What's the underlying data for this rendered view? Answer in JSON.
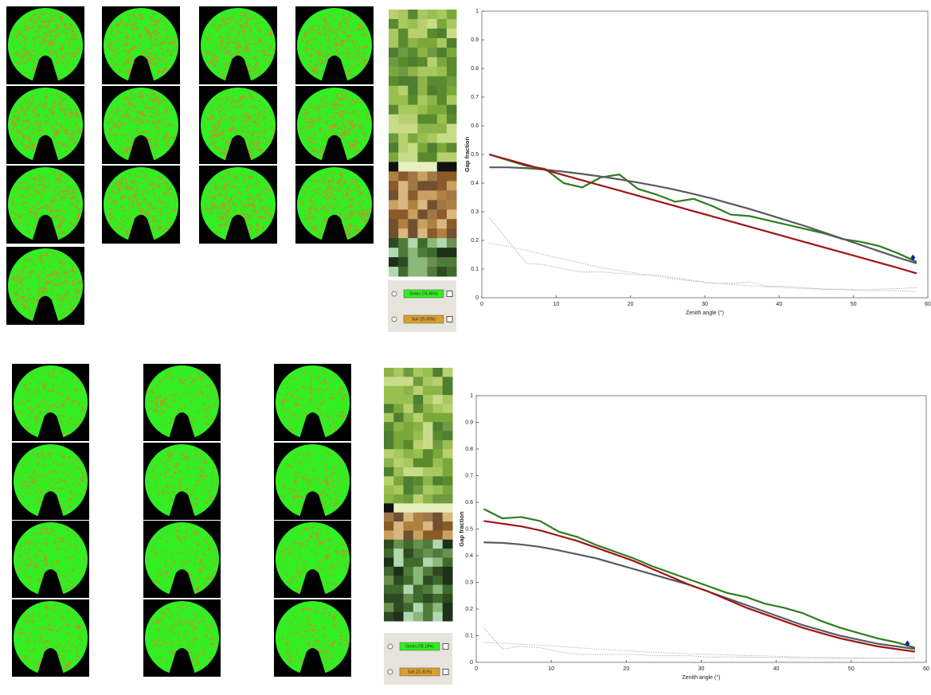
{
  "chart_data": [
    {
      "type": "line",
      "xlabel": "Zenith angle (°)",
      "ylabel": "Gap fraction",
      "xlim": [
        0,
        60
      ],
      "xticks": [
        0,
        10,
        20,
        30,
        40,
        50,
        60
      ],
      "ylim": [
        0,
        1
      ],
      "yticks": [
        0,
        0.1,
        0.2,
        0.3,
        0.4,
        0.5,
        0.6,
        0.7,
        0.8,
        0.9,
        1
      ],
      "x": [
        1,
        3.5,
        6,
        8.5,
        11,
        13.5,
        16,
        18.5,
        21,
        23.5,
        26,
        28.5,
        31,
        33.5,
        36,
        38.5,
        41,
        43.5,
        46,
        48.5,
        51,
        53.5,
        56,
        58.5
      ],
      "series": [
        {
          "color": "#c8a8a8",
          "style": "dotted",
          "values": [
            0.28,
            0.2,
            0.12,
            0.115,
            0.1,
            0.09,
            0.09,
            0.085,
            0.08,
            0.08,
            0.07,
            0.06,
            0.05,
            0.05,
            0.055,
            0.04,
            0.04,
            0.035,
            0.03,
            0.03,
            0.025,
            0.025,
            0.025,
            0.02
          ]
        },
        {
          "color": "#b8b8b8",
          "style": "dotted",
          "values": [
            0.19,
            0.18,
            0.165,
            0.15,
            0.135,
            0.12,
            0.105,
            0.095,
            0.085,
            0.075,
            0.065,
            0.058,
            0.052,
            0.047,
            0.042,
            0.038,
            0.035,
            0.032,
            0.03,
            0.028,
            0.028,
            0.03,
            0.032,
            0.035
          ]
        },
        {
          "color": "#2e7d1e",
          "style": "solid",
          "values": [
            0.5,
            0.48,
            0.46,
            0.45,
            0.4,
            0.385,
            0.42,
            0.43,
            0.38,
            0.36,
            0.335,
            0.345,
            0.32,
            0.29,
            0.285,
            0.27,
            0.255,
            0.24,
            0.225,
            0.205,
            0.195,
            0.18,
            0.155,
            0.125
          ]
        },
        {
          "color": "#555a60",
          "style": "solid",
          "values": [
            0.455,
            0.455,
            0.452,
            0.447,
            0.44,
            0.432,
            0.423,
            0.413,
            0.402,
            0.39,
            0.377,
            0.362,
            0.346,
            0.328,
            0.31,
            0.29,
            0.27,
            0.25,
            0.228,
            0.206,
            0.184,
            0.162,
            0.14,
            0.12
          ]
        },
        {
          "color": "#a01414",
          "style": "solid",
          "values": [
            0.5,
            0.482,
            0.464,
            0.446,
            0.428,
            0.41,
            0.392,
            0.374,
            0.356,
            0.338,
            0.32,
            0.302,
            0.284,
            0.266,
            0.248,
            0.23,
            0.212,
            0.194,
            0.176,
            0.158,
            0.14,
            0.122,
            0.104,
            0.085
          ]
        }
      ],
      "marker": {
        "x": 58,
        "y": 0.14,
        "color": "#1020c0"
      }
    },
    {
      "type": "line",
      "xlabel": "Zenith angle (°)",
      "ylabel": "Gap fraction",
      "xlim": [
        0,
        60
      ],
      "xticks": [
        0,
        10,
        20,
        30,
        40,
        50,
        60
      ],
      "ylim": [
        0,
        1
      ],
      "yticks": [
        0,
        0.1,
        0.2,
        0.3,
        0.4,
        0.5,
        0.6,
        0.7,
        0.8,
        0.9,
        1
      ],
      "x": [
        1,
        3.5,
        6,
        8.5,
        11,
        13.5,
        16,
        18.5,
        21,
        23.5,
        26,
        28.5,
        31,
        33.5,
        36,
        38.5,
        41,
        43.5,
        46,
        48.5,
        51,
        53.5,
        56,
        58.5
      ],
      "series": [
        {
          "color": "#c8a8a8",
          "style": "dotted",
          "values": [
            0.13,
            0.05,
            0.06,
            0.055,
            0.04,
            0.03,
            0.03,
            0.03,
            0.03,
            0.025,
            0.025,
            0.025,
            0.02,
            0.02,
            0.02,
            0.018,
            0.018,
            0.015,
            0.015,
            0.015,
            0.015,
            0.015,
            0.015,
            0.02
          ]
        },
        {
          "color": "#b8b8b8",
          "style": "dotted",
          "values": [
            0.075,
            0.072,
            0.068,
            0.064,
            0.06,
            0.055,
            0.05,
            0.046,
            0.042,
            0.038,
            0.035,
            0.032,
            0.03,
            0.028,
            0.026,
            0.024,
            0.022,
            0.02,
            0.019,
            0.018,
            0.017,
            0.016,
            0.015,
            0.015
          ]
        },
        {
          "color": "#2e7d1e",
          "style": "solid",
          "values": [
            0.575,
            0.54,
            0.545,
            0.53,
            0.49,
            0.47,
            0.44,
            0.415,
            0.39,
            0.36,
            0.335,
            0.31,
            0.285,
            0.26,
            0.245,
            0.22,
            0.205,
            0.185,
            0.155,
            0.13,
            0.11,
            0.09,
            0.075,
            0.055
          ]
        },
        {
          "color": "#555a60",
          "style": "solid",
          "values": [
            0.45,
            0.448,
            0.442,
            0.433,
            0.42,
            0.405,
            0.39,
            0.37,
            0.35,
            0.33,
            0.31,
            0.29,
            0.265,
            0.24,
            0.215,
            0.19,
            0.165,
            0.14,
            0.12,
            0.1,
            0.085,
            0.07,
            0.06,
            0.05
          ]
        },
        {
          "color": "#a01414",
          "style": "solid",
          "values": [
            0.53,
            0.52,
            0.51,
            0.495,
            0.475,
            0.455,
            0.43,
            0.405,
            0.38,
            0.35,
            0.32,
            0.29,
            0.265,
            0.235,
            0.205,
            0.18,
            0.155,
            0.13,
            0.11,
            0.09,
            0.075,
            0.06,
            0.05,
            0.04
          ]
        }
      ],
      "marker": {
        "x": 57.5,
        "y": 0.07,
        "color": "#1020c0"
      }
    }
  ],
  "panels": [
    {
      "legend": [
        "Green (74.45%)",
        "Soil (25.55%)"
      ]
    },
    {
      "legend": [
        "Green (78.19%)",
        "Soil (21.81%)"
      ]
    }
  ]
}
